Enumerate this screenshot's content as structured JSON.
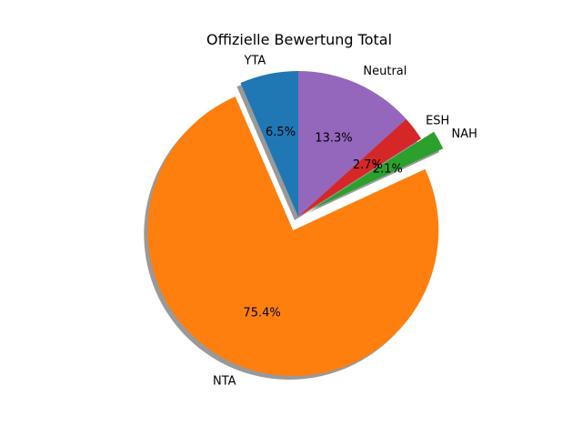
{
  "chart_data": {
    "type": "pie",
    "title": "Offizielle Bewertung Total",
    "slices": [
      {
        "label": "YTA",
        "value": 6.5,
        "pct_label": "6.5%",
        "color": "#1f77b4",
        "exploded": false
      },
      {
        "label": "NTA",
        "value": 75.4,
        "pct_label": "75.4%",
        "color": "#ff7f0e",
        "exploded": true
      },
      {
        "label": "NAH",
        "value": 2.1,
        "pct_label": "2.1%",
        "color": "#2ca02c",
        "exploded": true
      },
      {
        "label": "ESH",
        "value": 2.7,
        "pct_label": "2.7%",
        "color": "#d62728",
        "exploded": false
      },
      {
        "label": "Neutral",
        "value": 13.3,
        "pct_label": "13.3%",
        "color": "#9467bd",
        "exploded": false
      }
    ],
    "start_angle_deg": 90,
    "direction": "counterclockwise",
    "shadow": true
  }
}
